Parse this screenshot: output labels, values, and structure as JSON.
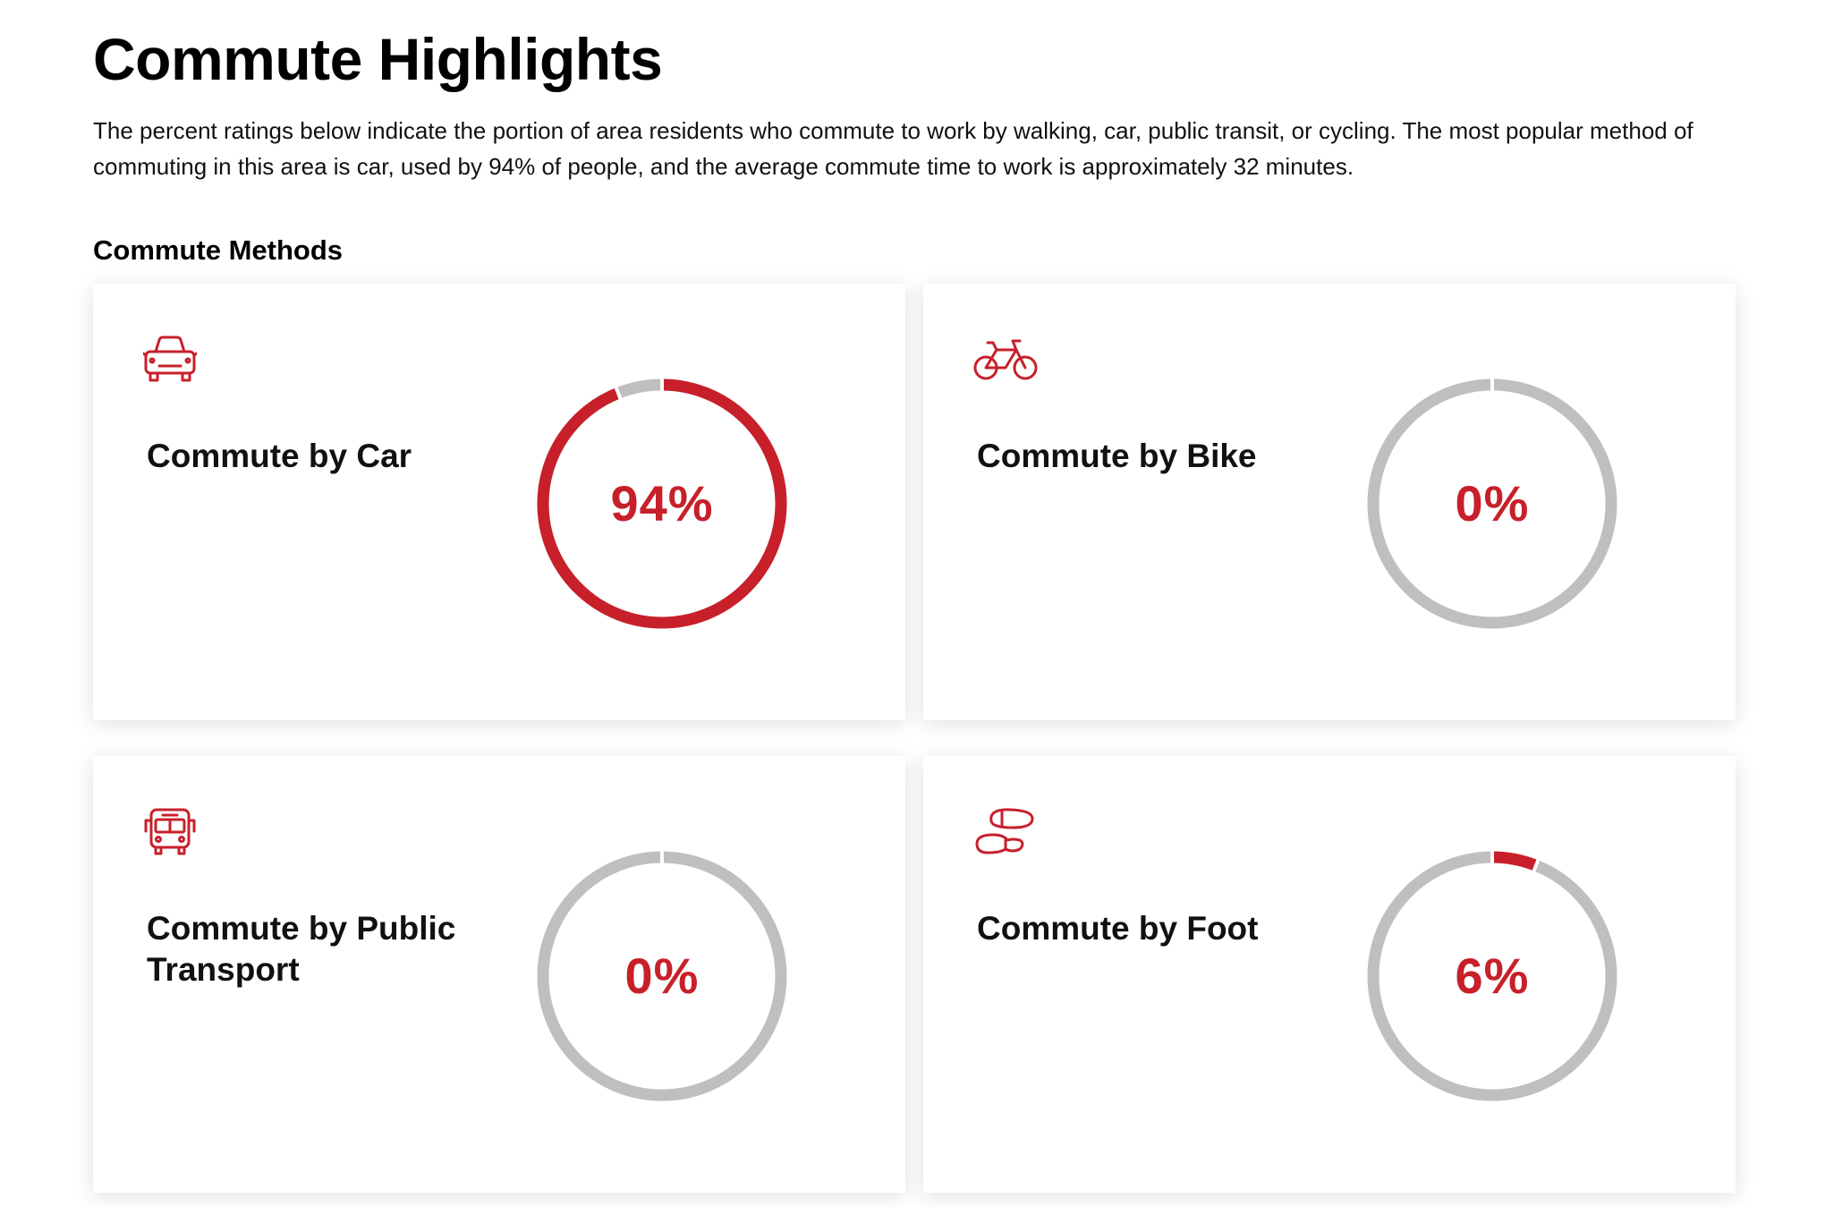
{
  "header": {
    "title": "Commute Highlights",
    "description": "The percent ratings below indicate the portion of area residents who commute to work by walking, car, public transit, or cycling. The most popular method of commuting in this area is car, used by 94% of people, and the average commute time to work is approximately 32 minutes."
  },
  "section": {
    "title": "Commute Methods"
  },
  "colors": {
    "accent": "#c8202b",
    "track": "#bfbfbf"
  },
  "cards": [
    {
      "label": "Commute by Car",
      "value_text": "94%",
      "percent": 94,
      "icon": "car-icon"
    },
    {
      "label": "Commute by Bike",
      "value_text": "0%",
      "percent": 0,
      "icon": "bicycle-icon"
    },
    {
      "label": "Commute by Public Transport",
      "value_text": "0%",
      "percent": 0,
      "icon": "bus-icon"
    },
    {
      "label": "Commute by Foot",
      "value_text": "6%",
      "percent": 6,
      "icon": "footprints-icon"
    }
  ]
}
